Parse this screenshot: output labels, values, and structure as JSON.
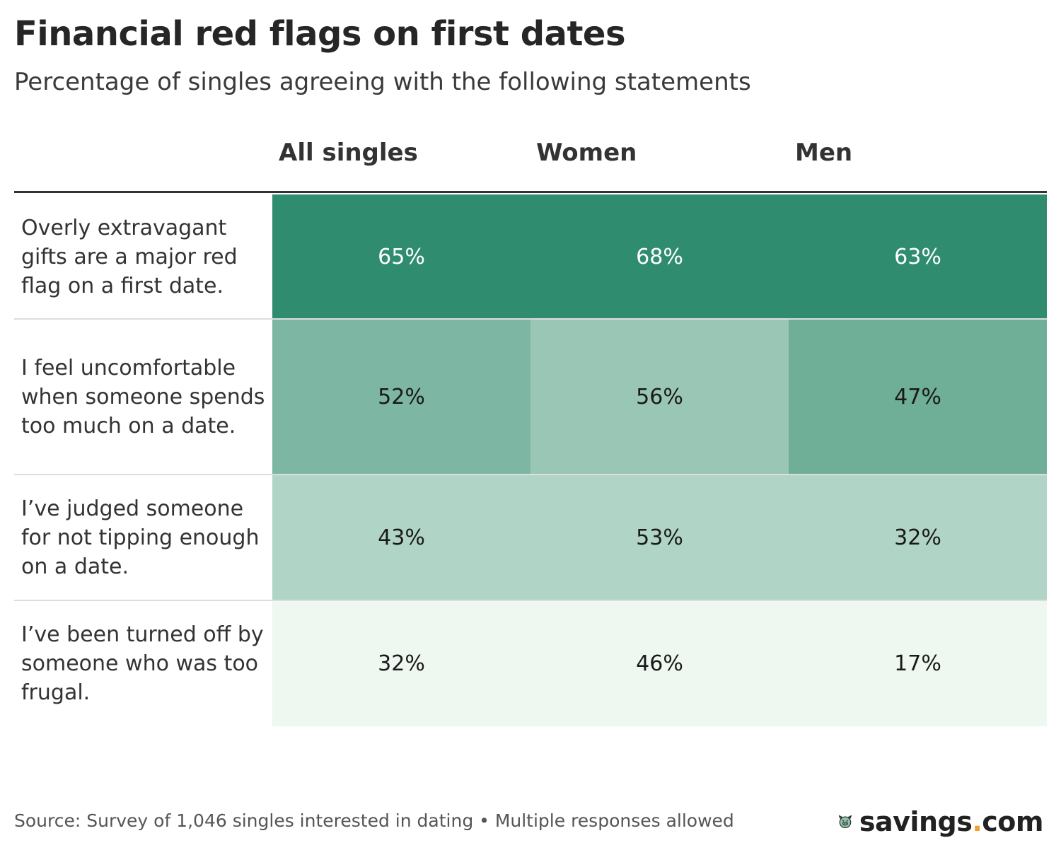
{
  "header": {
    "title": "Financial red flags on first dates",
    "subtitle": "Percentage of singles agreeing with the following statements"
  },
  "table": {
    "columns": [
      "All singles",
      "Women",
      "Men"
    ],
    "rows": [
      {
        "label": "Overly extravagant gifts are a major red flag on a first date.",
        "text_color": "#ffffff",
        "cells": [
          {
            "text": "65%",
            "color": "#2f8c6f"
          },
          {
            "text": "68%",
            "color": "#2f8c6f"
          },
          {
            "text": "63%",
            "color": "#2f8c6f"
          }
        ]
      },
      {
        "label": "I feel uncomfortable when someone spends too much on a date.",
        "text_color": "#1a1a1a",
        "cells": [
          {
            "text": "52%",
            "color": "#7db6a2"
          },
          {
            "text": "56%",
            "color": "#9ac7b5"
          },
          {
            "text": "47%",
            "color": "#6fae97"
          }
        ]
      },
      {
        "label": "I’ve judged someone for not tipping enough on a date.",
        "text_color": "#1a1a1a",
        "cells": [
          {
            "text": "43%",
            "color": "#b0d5c7"
          },
          {
            "text": "53%",
            "color": "#b0d5c7"
          },
          {
            "text": "32%",
            "color": "#b0d5c7"
          }
        ]
      },
      {
        "label": "I’ve been turned off by someone who was too frugal.",
        "text_color": "#1a1a1a",
        "cells": [
          {
            "text": "32%",
            "color": "#eef7f0"
          },
          {
            "text": "46%",
            "color": "#eef7f0"
          },
          {
            "text": "17%",
            "color": "#eef7f0"
          }
        ]
      }
    ]
  },
  "footer": {
    "source": "Source: Survey of 1,046 singles interested in dating • Multiple responses allowed",
    "logo_parts": [
      "savings",
      ".",
      "com"
    ]
  }
}
